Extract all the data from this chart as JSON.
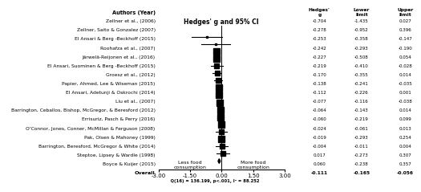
{
  "authors": [
    "Zellner et al., (2006)",
    "Zellner, Saito & Gonzalez (2007)",
    "El Ansari & Berg -Beckhoff (2015)",
    "Roohafza et al., (2007)",
    "Järwelä-Reijonen et al., (2016)",
    "El Ansari, Suominen & Berg -Beckhoff (2015)",
    "Groesz et al., (2012)",
    "Papier, Ahmed, Lee & Wiseman (2015)",
    "El Ansari, Adetunji & Oskrochi (2014)",
    "Liu et al., (2007)",
    "Barrington, Ceballos, Bishop, McGregor, & Beresford (2012)",
    "Errisuriz, Pasch & Perry (2016)",
    "O'Connor, Jones, Conner, McMillan & Ferguson (2008)",
    "Pak, Olsen & Mahoney (1999)",
    "Barrington, Beresford, McGregor & White (2014)",
    "Steptoe, Lipsey & Wardle (1998)",
    "Boyce & Kuijer (2015)"
  ],
  "hedges_g": [
    -0.704,
    -0.278,
    -0.253,
    -0.242,
    -0.227,
    -0.219,
    -0.17,
    -0.138,
    -0.112,
    -0.077,
    -0.064,
    -0.06,
    -0.024,
    -0.019,
    -0.004,
    0.017,
    0.06
  ],
  "lower": [
    -1.435,
    -0.952,
    -0.358,
    -0.293,
    -0.508,
    -0.41,
    -0.355,
    -0.241,
    -0.226,
    -0.116,
    -0.143,
    -0.219,
    -0.061,
    -0.293,
    -0.011,
    -0.273,
    -0.238
  ],
  "upper": [
    0.027,
    0.396,
    -0.147,
    -0.19,
    0.054,
    -0.028,
    0.014,
    -0.035,
    0.001,
    -0.038,
    0.014,
    0.099,
    0.013,
    0.254,
    0.004,
    0.307,
    0.357
  ],
  "overall_g": -0.111,
  "overall_lower": -0.165,
  "overall_upper": -0.056,
  "overall_stat": "Q(16) = 136.199, p<.001, I² = 88.252",
  "xlim": [
    -3.0,
    3.0
  ],
  "xticks": [
    -3.0,
    -1.5,
    0.0,
    1.5,
    3.0
  ],
  "xlabel_left": "Less food\nconsumption",
  "xlabel_right": "More food\nconsumption",
  "marker_color": "black",
  "ci_linewidth": 0.8
}
